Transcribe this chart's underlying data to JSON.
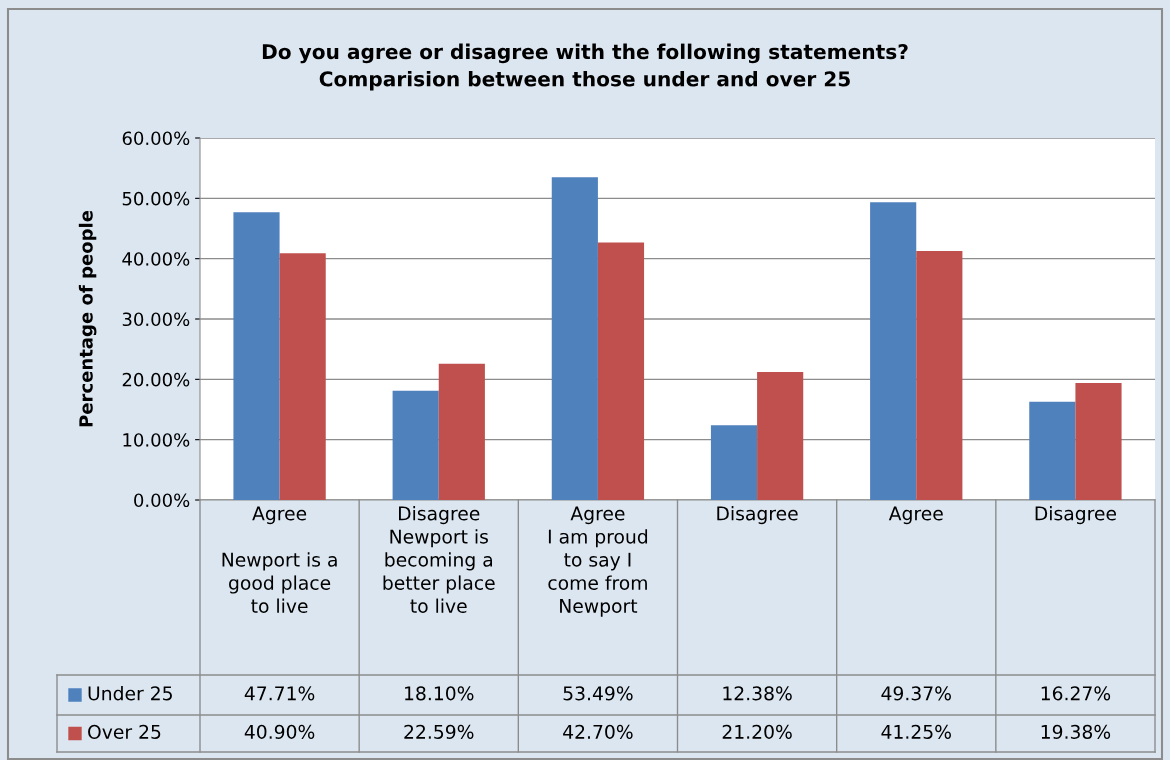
{
  "chart_data": {
    "type": "bar",
    "title": "Do you agree or disagree with the following statements?\nComparision between those under and over 25",
    "ylabel": "Percentage of people",
    "categories": [
      "Agree\n\nNewport is a\ngood place\nto live",
      "Disagree\nNewport is\nbecoming a\nbetter place\nto live",
      "Agree\nI am proud\nto say I\ncome from\nNewport",
      "Disagree",
      "Agree",
      "Disagree"
    ],
    "series": [
      {
        "name": "Under 25",
        "color": "#4f81bd",
        "values": [
          47.71,
          18.1,
          53.49,
          12.38,
          49.37,
          16.27
        ],
        "value_labels": [
          "47.71%",
          "18.10%",
          "53.49%",
          "12.38%",
          "49.37%",
          "16.27%"
        ]
      },
      {
        "name": "Over 25",
        "color": "#c0504d",
        "values": [
          40.9,
          22.59,
          42.7,
          21.2,
          41.25,
          19.38
        ],
        "value_labels": [
          "40.90%",
          "22.59%",
          "42.70%",
          "21.20%",
          "41.25%",
          "19.38%"
        ]
      }
    ],
    "ylim": [
      0,
      60
    ],
    "yticks": [
      {
        "value": 0,
        "label": "0.00%"
      },
      {
        "value": 10,
        "label": "10.00%"
      },
      {
        "value": 20,
        "label": "20.00%"
      },
      {
        "value": 30,
        "label": "30.00%"
      },
      {
        "value": 40,
        "label": "40.00%"
      },
      {
        "value": 50,
        "label": "50.00%"
      },
      {
        "value": 60,
        "label": "60.00%"
      }
    ],
    "grid": "y",
    "legend": "bottom"
  }
}
